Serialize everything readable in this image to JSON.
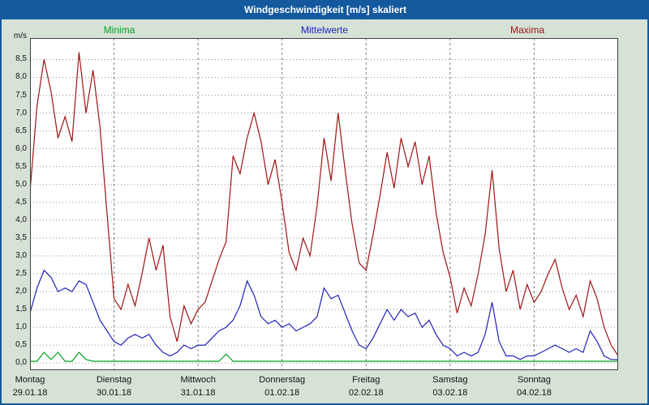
{
  "window": {
    "title": "Windgeschwindigkeit [m/s] skaliert"
  },
  "chart_data": {
    "type": "line",
    "title": "Windgeschwindigkeit [m/s] skaliert",
    "y_unit_label": "m/s",
    "ylim": [
      -0.2,
      9.1
    ],
    "yticks": [
      "0,0",
      "0,5",
      "1,0",
      "1,5",
      "2,0",
      "2,5",
      "3,0",
      "3,5",
      "4,0",
      "4,5",
      "5,0",
      "5,5",
      "6,0",
      "6,5",
      "7,0",
      "7,5",
      "8,0",
      "8,5"
    ],
    "grid": "dotted horizontal every 0.5 m/s, dashed vertical at day boundaries",
    "legend_position": "top",
    "x_total_hours": 168,
    "x_step_hours": 2,
    "days": [
      {
        "name": "Montag",
        "date": "29.01.18"
      },
      {
        "name": "Dienstag",
        "date": "30.01.18"
      },
      {
        "name": "Mittwoch",
        "date": "31.01.18"
      },
      {
        "name": "Donnerstag",
        "date": "01.02.18"
      },
      {
        "name": "Freitag",
        "date": "02.02.18"
      },
      {
        "name": "Samstag",
        "date": "03.02.18"
      },
      {
        "name": "Sonntag",
        "date": "04.02.18"
      }
    ],
    "series": [
      {
        "name": "Minima",
        "color": "#00a020",
        "values": [
          0.05,
          0.05,
          0.3,
          0.1,
          0.3,
          0.05,
          0.05,
          0.3,
          0.1,
          0.05,
          0.05,
          0.05,
          0.05,
          0.05,
          0.05,
          0.05,
          0.05,
          0.05,
          0.05,
          0.05,
          0.05,
          0.05,
          0.05,
          0.05,
          0.05,
          0.05,
          0.05,
          0.05,
          0.25,
          0.05,
          0.05,
          0.05,
          0.05,
          0.05,
          0.05,
          0.05,
          0.05,
          0.05,
          0.05,
          0.05,
          0.05,
          0.05,
          0.05,
          0.05,
          0.05,
          0.05,
          0.05,
          0.05,
          0.05,
          0.05,
          0.05,
          0.05,
          0.05,
          0.05,
          0.05,
          0.05,
          0.05,
          0.05,
          0.05,
          0.05,
          0.05,
          0.05,
          0.05,
          0.05,
          0.05,
          0.05,
          0.05,
          0.05,
          0.05,
          0.05,
          0.05,
          0.05,
          0.05,
          0.05,
          0.05,
          0.05,
          0.05,
          0.05,
          0.05,
          0.05,
          0.05,
          0.05,
          0.05,
          0.05,
          0.05
        ]
      },
      {
        "name": "Mittelwerte",
        "color": "#2222bb",
        "values": [
          1.4,
          2.1,
          2.6,
          2.4,
          2.0,
          2.1,
          2.0,
          2.3,
          2.2,
          1.7,
          1.2,
          0.9,
          0.6,
          0.5,
          0.7,
          0.8,
          0.7,
          0.8,
          0.5,
          0.3,
          0.2,
          0.3,
          0.5,
          0.4,
          0.5,
          0.5,
          0.7,
          0.9,
          1.0,
          1.2,
          1.6,
          2.3,
          1.9,
          1.3,
          1.1,
          1.2,
          1.0,
          1.1,
          0.9,
          1.0,
          1.1,
          1.3,
          2.1,
          1.8,
          1.9,
          1.4,
          0.9,
          0.5,
          0.4,
          0.7,
          1.1,
          1.5,
          1.2,
          1.5,
          1.3,
          1.4,
          1.0,
          1.2,
          0.8,
          0.5,
          0.4,
          0.2,
          0.3,
          0.2,
          0.3,
          0.8,
          1.7,
          0.6,
          0.2,
          0.2,
          0.1,
          0.2,
          0.2,
          0.3,
          0.4,
          0.5,
          0.4,
          0.3,
          0.4,
          0.3,
          0.9,
          0.6,
          0.2,
          0.1,
          0.1
        ]
      },
      {
        "name": "Maxima",
        "color": "#a01414",
        "values": [
          4.8,
          7.2,
          8.5,
          7.6,
          6.3,
          6.9,
          6.2,
          8.7,
          7.0,
          8.2,
          6.6,
          4.2,
          1.8,
          1.5,
          2.2,
          1.6,
          2.5,
          3.5,
          2.6,
          3.3,
          1.3,
          0.6,
          1.6,
          1.1,
          1.5,
          1.7,
          2.3,
          2.9,
          3.4,
          5.8,
          5.3,
          6.3,
          7.0,
          6.2,
          5.0,
          5.7,
          4.5,
          3.1,
          2.6,
          3.5,
          3.0,
          4.4,
          6.3,
          5.1,
          7.0,
          5.4,
          3.9,
          2.8,
          2.6,
          3.6,
          4.7,
          5.9,
          4.9,
          6.3,
          5.5,
          6.2,
          5.0,
          5.8,
          4.2,
          3.1,
          2.4,
          1.4,
          2.1,
          1.6,
          2.5,
          3.6,
          5.4,
          3.2,
          2.0,
          2.6,
          1.5,
          2.2,
          1.7,
          2.0,
          2.5,
          2.9,
          2.1,
          1.5,
          1.9,
          1.3,
          2.3,
          1.8,
          1.0,
          0.5,
          0.2
        ]
      }
    ]
  }
}
